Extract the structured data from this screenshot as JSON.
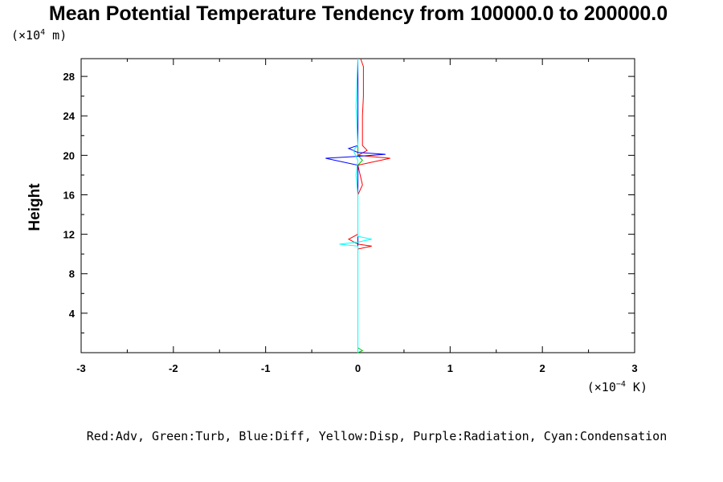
{
  "chart_data": {
    "type": "line",
    "title": "Mean Potential Temperature Tendency from 100000.0 to 200000.0",
    "ylabel": "Height",
    "y_unit_prefix": "(×10",
    "y_unit_exp": "4",
    "y_unit_suffix": " m)",
    "x_unit_prefix": "(×10",
    "x_unit_exp": "−4",
    "x_unit_suffix": " K)",
    "xlim": [
      -3,
      3
    ],
    "ylim": [
      0,
      29.8
    ],
    "x_ticks": [
      "-3",
      "-2",
      "-1",
      "0",
      "1",
      "2",
      "3"
    ],
    "y_ticks": [
      "4",
      "8",
      "12",
      "16",
      "20",
      "24",
      "28"
    ],
    "legend": "Red:Adv, Green:Turb, Blue:Diff, Yellow:Disp, Purple:Radiation, Cyan:Condensation",
    "series": [
      {
        "color": "#ff0000",
        "points": [
          [
            0.0,
            0.0
          ],
          [
            0.0,
            10.5
          ],
          [
            0.15,
            10.8
          ],
          [
            0.0,
            11.0
          ],
          [
            -0.1,
            11.5
          ],
          [
            0.0,
            12.0
          ],
          [
            0.0,
            16.0
          ],
          [
            0.05,
            17.0
          ],
          [
            0.0,
            19.0
          ],
          [
            0.35,
            19.7
          ],
          [
            0.0,
            20.0
          ],
          [
            0.1,
            20.5
          ],
          [
            0.05,
            21.0
          ],
          [
            0.05,
            22.0
          ],
          [
            0.05,
            24.0
          ],
          [
            0.06,
            26.0
          ],
          [
            0.06,
            29.0
          ],
          [
            0.03,
            29.8
          ]
        ]
      },
      {
        "color": "#00c000",
        "points": [
          [
            0.0,
            0.0
          ],
          [
            0.05,
            0.2
          ],
          [
            0.0,
            0.5
          ],
          [
            0.0,
            19.0
          ],
          [
            0.05,
            19.5
          ],
          [
            0.0,
            20.0
          ],
          [
            0.0,
            29.8
          ]
        ]
      },
      {
        "color": "#0000ff",
        "points": [
          [
            0.0,
            0.0
          ],
          [
            0.0,
            19.0
          ],
          [
            -0.35,
            19.7
          ],
          [
            0.0,
            19.9
          ],
          [
            0.3,
            20.1
          ],
          [
            0.0,
            20.3
          ],
          [
            -0.1,
            20.7
          ],
          [
            0.0,
            21.0
          ],
          [
            0.0,
            29.8
          ]
        ]
      },
      {
        "color": "#00ffff",
        "points": [
          [
            0.0,
            0.0
          ],
          [
            0.0,
            10.8
          ],
          [
            -0.2,
            11.0
          ],
          [
            0.0,
            11.2
          ],
          [
            0.15,
            11.5
          ],
          [
            0.0,
            11.8
          ],
          [
            0.0,
            16.0
          ],
          [
            -0.02,
            18.0
          ],
          [
            0.0,
            19.5
          ],
          [
            -0.05,
            20.5
          ],
          [
            0.0,
            21.0
          ],
          [
            -0.02,
            25.0
          ],
          [
            0.0,
            29.8
          ]
        ]
      }
    ]
  }
}
